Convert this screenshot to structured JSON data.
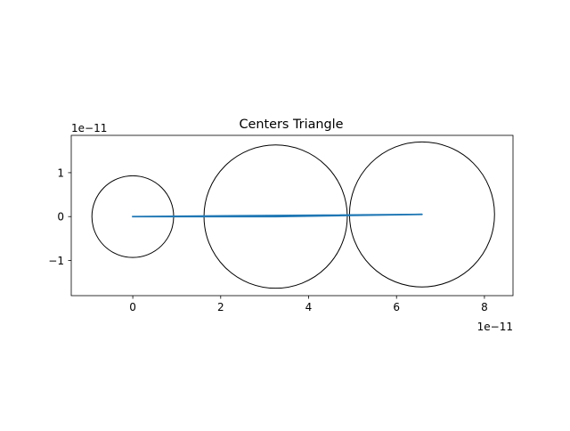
{
  "chart_data": {
    "type": "line",
    "title": "Centers Triangle",
    "xlabel": "",
    "ylabel": "",
    "x_offset_text": "1e−11",
    "y_offset_text": "1e−11",
    "xlim": [
      -1.4,
      8.65
    ],
    "ylim": [
      -1.8,
      1.85
    ],
    "aspect": "equal",
    "grid": false,
    "legend": "none",
    "x_ticks": [
      {
        "value": 0,
        "label": "0"
      },
      {
        "value": 2,
        "label": "2"
      },
      {
        "value": 4,
        "label": "4"
      },
      {
        "value": 6,
        "label": "6"
      },
      {
        "value": 8,
        "label": "8"
      }
    ],
    "y_ticks": [
      {
        "value": -1,
        "label": "−1"
      },
      {
        "value": 0,
        "label": "0"
      },
      {
        "value": 1,
        "label": "1"
      }
    ],
    "circles": [
      {
        "center": [
          0.0,
          0.0
        ],
        "radius": 0.93,
        "color": "#000000"
      },
      {
        "center": [
          3.25,
          0.0
        ],
        "radius": 1.63,
        "color": "#000000"
      },
      {
        "center": [
          6.58,
          0.05
        ],
        "radius": 1.65,
        "color": "#000000"
      }
    ],
    "series": [
      {
        "x": [
          0.0,
          3.25,
          6.58,
          0.0
        ],
        "y": [
          0.0,
          0.0,
          0.05,
          0.0
        ],
        "color": "#1f77b4"
      }
    ]
  }
}
